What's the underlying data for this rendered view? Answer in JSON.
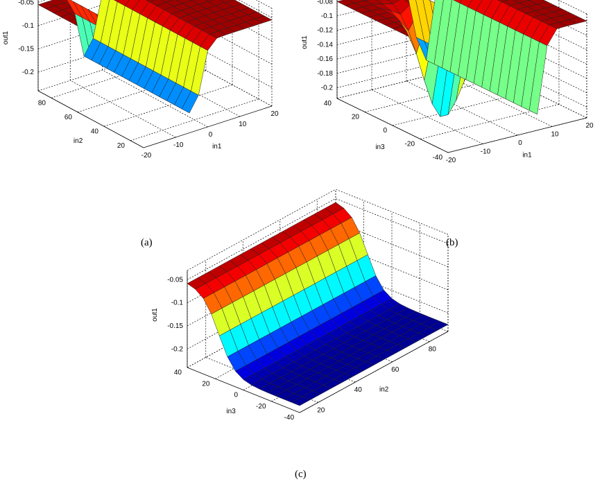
{
  "figure": {
    "panels": [
      "(a)",
      "(b)",
      "(c)"
    ]
  },
  "chart_data": [
    {
      "type": "surface",
      "panel_label": "(a)",
      "xlabel": "in1",
      "ylabel": "in2",
      "zlabel": "out1",
      "x_ticks": [
        "-20",
        "-10",
        "0",
        "10",
        "20"
      ],
      "y_ticks": [
        "20",
        "40",
        "60",
        "80"
      ],
      "z_ticks": [
        "-0.05",
        "-0.1",
        "-0.15",
        "-0.2"
      ],
      "xlim": [
        -20,
        20
      ],
      "ylim": [
        10,
        90
      ],
      "zlim": [
        -0.24,
        -0.03
      ],
      "z_high": -0.055,
      "z_low": -0.225,
      "colormap": "jet",
      "grid": true
    },
    {
      "type": "surface",
      "panel_label": "(b)",
      "xlabel": "in1",
      "ylabel": "in3",
      "zlabel": "out1",
      "x_ticks": [
        "-20",
        "-10",
        "0",
        "10",
        "20"
      ],
      "y_ticks": [
        "-40",
        "-20",
        "0",
        "20",
        "40"
      ],
      "z_ticks": [
        "-0.08",
        "-0.1",
        "-0.12",
        "-0.14",
        "-0.16",
        "-0.18",
        "-0.2"
      ],
      "xlim": [
        -20,
        20
      ],
      "ylim": [
        -40,
        40
      ],
      "zlim": [
        -0.215,
        -0.07
      ],
      "z_high": -0.08,
      "z_low": -0.212,
      "colormap": "jet",
      "grid": true
    },
    {
      "type": "surface",
      "panel_label": "(c)",
      "xlabel": "in2",
      "ylabel": "in3",
      "zlabel": "out1",
      "x_ticks": [
        "20",
        "40",
        "60",
        "80"
      ],
      "y_ticks": [
        "-40",
        "-20",
        "0",
        "20",
        "40"
      ],
      "z_ticks": [
        "-0.05",
        "-0.1",
        "-0.15",
        "-0.2"
      ],
      "xlim": [
        10,
        90
      ],
      "ylim": [
        -40,
        40
      ],
      "zlim": [
        -0.24,
        -0.03
      ],
      "z_high": -0.055,
      "z_low": -0.225,
      "colormap": "jet",
      "grid": true
    }
  ]
}
